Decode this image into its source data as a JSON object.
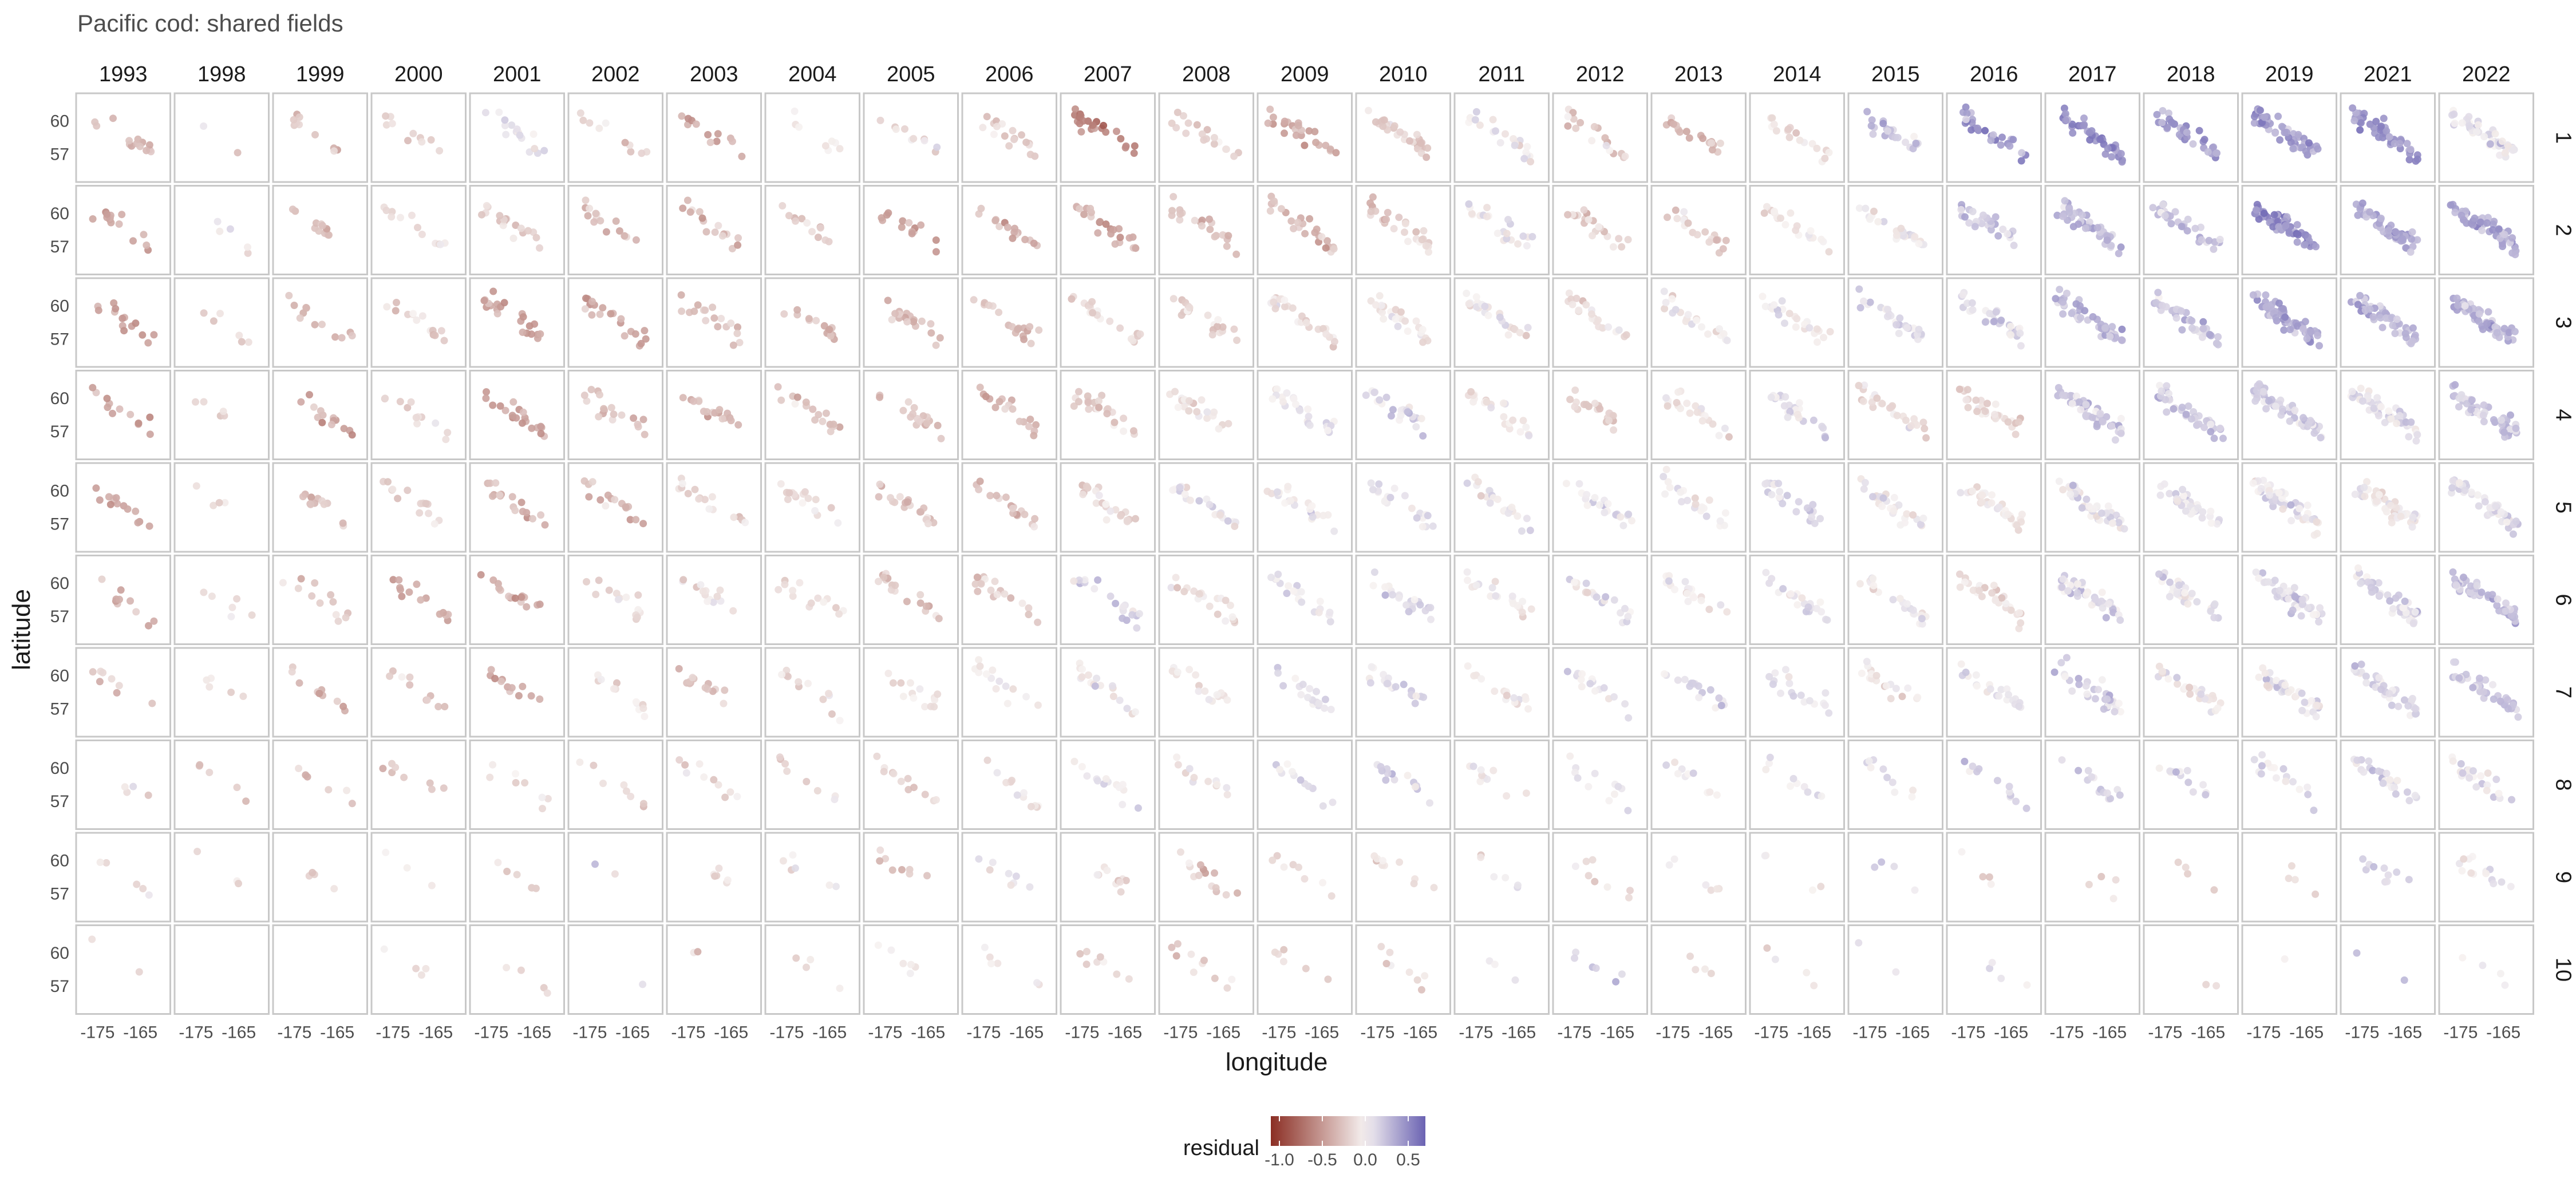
{
  "chart_data": {
    "type": "scatter",
    "title": "Pacific cod: shared fields",
    "xlabel": "longitude",
    "ylabel": "latitude",
    "columns": [
      "1993",
      "1998",
      "1999",
      "2000",
      "2001",
      "2002",
      "2003",
      "2004",
      "2005",
      "2006",
      "2007",
      "2008",
      "2009",
      "2010",
      "2011",
      "2012",
      "2013",
      "2014",
      "2015",
      "2016",
      "2017",
      "2018",
      "2019",
      "2021",
      "2022"
    ],
    "rows": [
      "1",
      "2",
      "3",
      "4",
      "5",
      "6",
      "7",
      "8",
      "9",
      "10"
    ],
    "x_ticks": [
      "-175",
      "-165"
    ],
    "x_tick_values": [
      -175,
      -165
    ],
    "y_ticks": [
      "57",
      "60"
    ],
    "y_tick_values": [
      57,
      60
    ],
    "xlim": [
      -180,
      -158
    ],
    "ylim": [
      54.5,
      62.5
    ],
    "grid": false,
    "legend": {
      "title": "residual",
      "placement": "bottom",
      "ticks": [
        "-1.0",
        "-0.5",
        "0.0",
        "0.5"
      ],
      "tick_values": [
        -1.0,
        -0.5,
        0.0,
        0.5
      ],
      "range": [
        -1.1,
        0.7
      ],
      "colors": {
        "low": "#8b2e24",
        "mid": "#f7f3f2",
        "high": "#6a62b2"
      }
    },
    "panel_point_counts": [
      [
        14,
        2,
        10,
        10,
        16,
        10,
        12,
        8,
        10,
        18,
        24,
        18,
        24,
        30,
        22,
        18,
        18,
        18,
        22,
        28,
        40,
        34,
        50,
        46,
        46
      ],
      [
        14,
        5,
        12,
        12,
        20,
        16,
        16,
        12,
        14,
        16,
        24,
        22,
        26,
        28,
        22,
        22,
        20,
        20,
        26,
        30,
        44,
        34,
        60,
        48,
        52
      ],
      [
        14,
        6,
        12,
        14,
        22,
        20,
        18,
        16,
        18,
        18,
        22,
        22,
        26,
        26,
        24,
        22,
        22,
        24,
        28,
        32,
        46,
        36,
        60,
        48,
        52
      ],
      [
        12,
        5,
        14,
        12,
        20,
        18,
        18,
        18,
        18,
        18,
        24,
        22,
        26,
        26,
        24,
        22,
        22,
        26,
        28,
        32,
        46,
        38,
        56,
        48,
        52
      ],
      [
        14,
        4,
        12,
        14,
        18,
        16,
        16,
        16,
        20,
        18,
        22,
        22,
        22,
        22,
        22,
        22,
        22,
        24,
        28,
        32,
        46,
        36,
        52,
        48,
        50
      ],
      [
        10,
        6,
        12,
        14,
        16,
        14,
        14,
        14,
        18,
        18,
        22,
        22,
        20,
        22,
        20,
        20,
        20,
        22,
        26,
        30,
        44,
        34,
        48,
        46,
        48
      ],
      [
        8,
        5,
        10,
        10,
        12,
        12,
        14,
        12,
        14,
        14,
        18,
        16,
        18,
        20,
        16,
        16,
        18,
        18,
        18,
        22,
        34,
        28,
        38,
        38,
        40
      ],
      [
        4,
        5,
        6,
        8,
        8,
        8,
        10,
        8,
        12,
        12,
        14,
        12,
        12,
        14,
        10,
        12,
        10,
        10,
        10,
        12,
        14,
        14,
        18,
        26,
        24
      ],
      [
        5,
        3,
        4,
        3,
        6,
        2,
        6,
        6,
        8,
        8,
        10,
        14,
        8,
        10,
        6,
        8,
        6,
        4,
        4,
        4,
        4,
        4,
        4,
        10,
        14
      ],
      [
        2,
        0,
        0,
        4,
        4,
        1,
        2,
        4,
        6,
        6,
        8,
        10,
        6,
        8,
        3,
        6,
        4,
        4,
        2,
        4,
        0,
        2,
        1,
        2,
        4
      ]
    ],
    "panel_mean_residual": [
      [
        -0.3,
        -0.05,
        -0.3,
        -0.2,
        0.05,
        -0.2,
        -0.4,
        0.0,
        -0.1,
        -0.2,
        -0.6,
        -0.2,
        -0.4,
        -0.2,
        0.0,
        -0.2,
        -0.3,
        -0.1,
        0.2,
        0.4,
        0.5,
        0.4,
        0.4,
        0.45,
        0.1
      ],
      [
        -0.4,
        0.0,
        -0.3,
        -0.1,
        -0.2,
        -0.3,
        -0.3,
        -0.2,
        -0.4,
        -0.4,
        -0.4,
        -0.3,
        -0.3,
        -0.2,
        0.0,
        -0.2,
        -0.2,
        -0.05,
        0.0,
        0.2,
        0.3,
        0.2,
        0.5,
        0.35,
        0.35
      ],
      [
        -0.4,
        -0.2,
        -0.3,
        -0.2,
        -0.45,
        -0.4,
        -0.3,
        -0.3,
        -0.3,
        -0.25,
        -0.15,
        -0.15,
        -0.1,
        -0.05,
        -0.05,
        -0.1,
        -0.05,
        0.0,
        0.1,
        0.15,
        0.25,
        0.2,
        0.35,
        0.3,
        0.3
      ],
      [
        -0.45,
        -0.2,
        -0.4,
        -0.1,
        -0.4,
        -0.25,
        -0.3,
        -0.3,
        -0.25,
        -0.3,
        -0.2,
        -0.1,
        0.05,
        0.1,
        -0.05,
        -0.2,
        -0.05,
        0.1,
        -0.1,
        -0.15,
        0.2,
        0.2,
        0.15,
        0.1,
        0.2
      ],
      [
        -0.4,
        -0.1,
        -0.3,
        -0.2,
        -0.35,
        -0.3,
        -0.15,
        -0.1,
        -0.25,
        -0.3,
        -0.15,
        0.05,
        0.05,
        0.1,
        0.05,
        0.05,
        0.05,
        0.1,
        0.0,
        -0.05,
        0.05,
        0.1,
        0.05,
        0.0,
        0.1
      ],
      [
        -0.35,
        -0.1,
        -0.25,
        -0.4,
        -0.4,
        -0.15,
        -0.1,
        -0.15,
        -0.25,
        -0.2,
        0.1,
        -0.1,
        0.1,
        0.1,
        0.0,
        0.05,
        -0.05,
        0.1,
        0.0,
        -0.1,
        0.15,
        0.1,
        0.15,
        0.15,
        0.25
      ],
      [
        -0.25,
        -0.15,
        -0.3,
        -0.3,
        -0.35,
        -0.1,
        -0.25,
        -0.1,
        -0.1,
        -0.05,
        0.0,
        -0.05,
        0.1,
        0.15,
        -0.05,
        0.05,
        0.15,
        0.1,
        -0.05,
        0.05,
        0.15,
        0.0,
        0.05,
        0.15,
        0.2
      ],
      [
        -0.1,
        -0.2,
        -0.2,
        -0.3,
        -0.15,
        -0.2,
        -0.1,
        -0.15,
        -0.15,
        -0.05,
        0.05,
        -0.05,
        0.1,
        0.15,
        0.05,
        0.1,
        0.1,
        0.05,
        0.1,
        0.15,
        0.15,
        0.1,
        0.1,
        0.1,
        0.1
      ],
      [
        -0.1,
        -0.1,
        -0.2,
        -0.05,
        -0.2,
        0.0,
        -0.1,
        -0.1,
        -0.2,
        0.0,
        -0.15,
        -0.25,
        -0.1,
        -0.1,
        -0.05,
        -0.1,
        0.0,
        0.0,
        0.1,
        -0.1,
        -0.15,
        -0.15,
        -0.15,
        0.1,
        0.05
      ],
      [
        -0.2,
        0.0,
        0.0,
        -0.15,
        -0.2,
        0.1,
        -0.2,
        -0.1,
        -0.05,
        -0.05,
        -0.15,
        -0.2,
        -0.15,
        -0.15,
        0.1,
        0.15,
        -0.1,
        -0.05,
        0.05,
        0.0,
        0.0,
        -0.1,
        -0.1,
        0.1,
        0.1
      ]
    ]
  }
}
